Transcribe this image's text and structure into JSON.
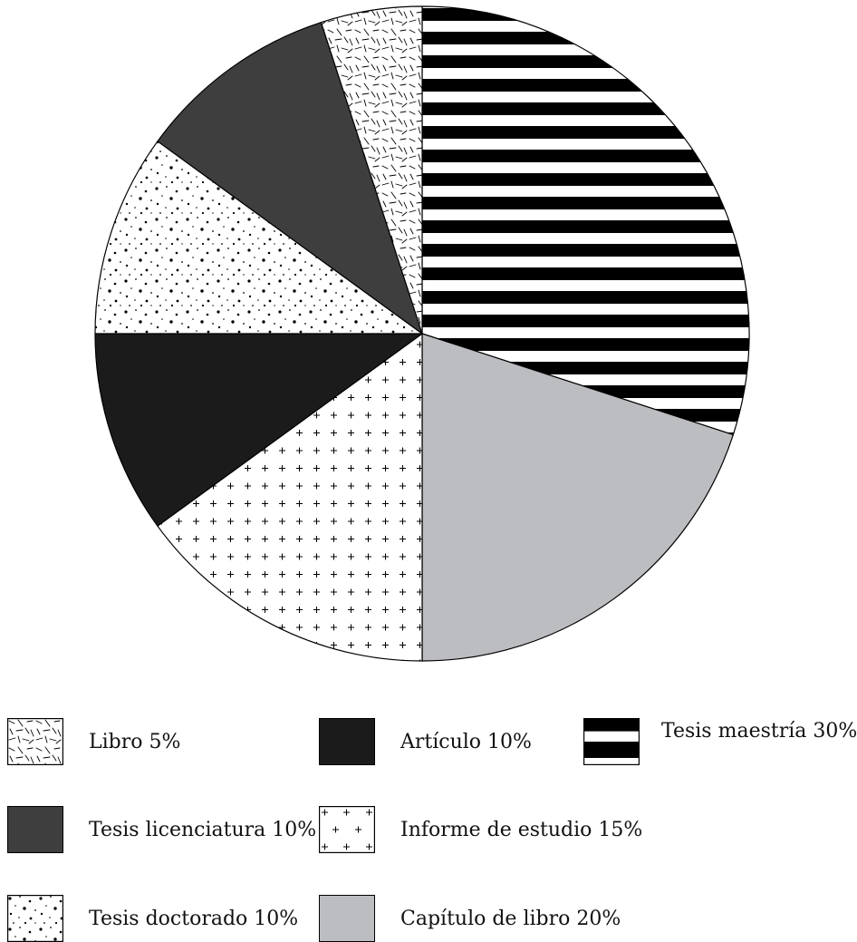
{
  "chart_data": {
    "type": "pie",
    "title": "",
    "start": "top, clockwise",
    "slices": [
      {
        "label": "Tesis maestría 30%",
        "value": 30,
        "pattern": "stripes",
        "color": "#000000"
      },
      {
        "label": "Capítulo de libro 20%",
        "value": 20,
        "pattern": "solid",
        "color": "#bcbdc0"
      },
      {
        "label": "Informe de estudio 15%",
        "value": 15,
        "pattern": "crosses",
        "color": "#ffffff"
      },
      {
        "label": "Artículo 10%",
        "value": 10,
        "pattern": "solid",
        "color": "#1b1b1b"
      },
      {
        "label": "Tesis doctorado 10%",
        "value": 10,
        "pattern": "dots",
        "color": "#ffffff"
      },
      {
        "label": "Tesis licenciatura 10%",
        "value": 10,
        "pattern": "solid",
        "color": "#3e3e3e"
      },
      {
        "label": "Libro 5%",
        "value": 5,
        "pattern": "dashes",
        "color": "#ffffff"
      }
    ],
    "legend": {
      "placement": "bottom",
      "order": [
        "Libro 5%",
        "Artículo 10%",
        "Tesis maestría 30%",
        "Tesis licenciatura 10%",
        "Informe de estudio 15%",
        "Tesis doctorado 10%",
        "Capítulo de libro 20%"
      ]
    }
  }
}
